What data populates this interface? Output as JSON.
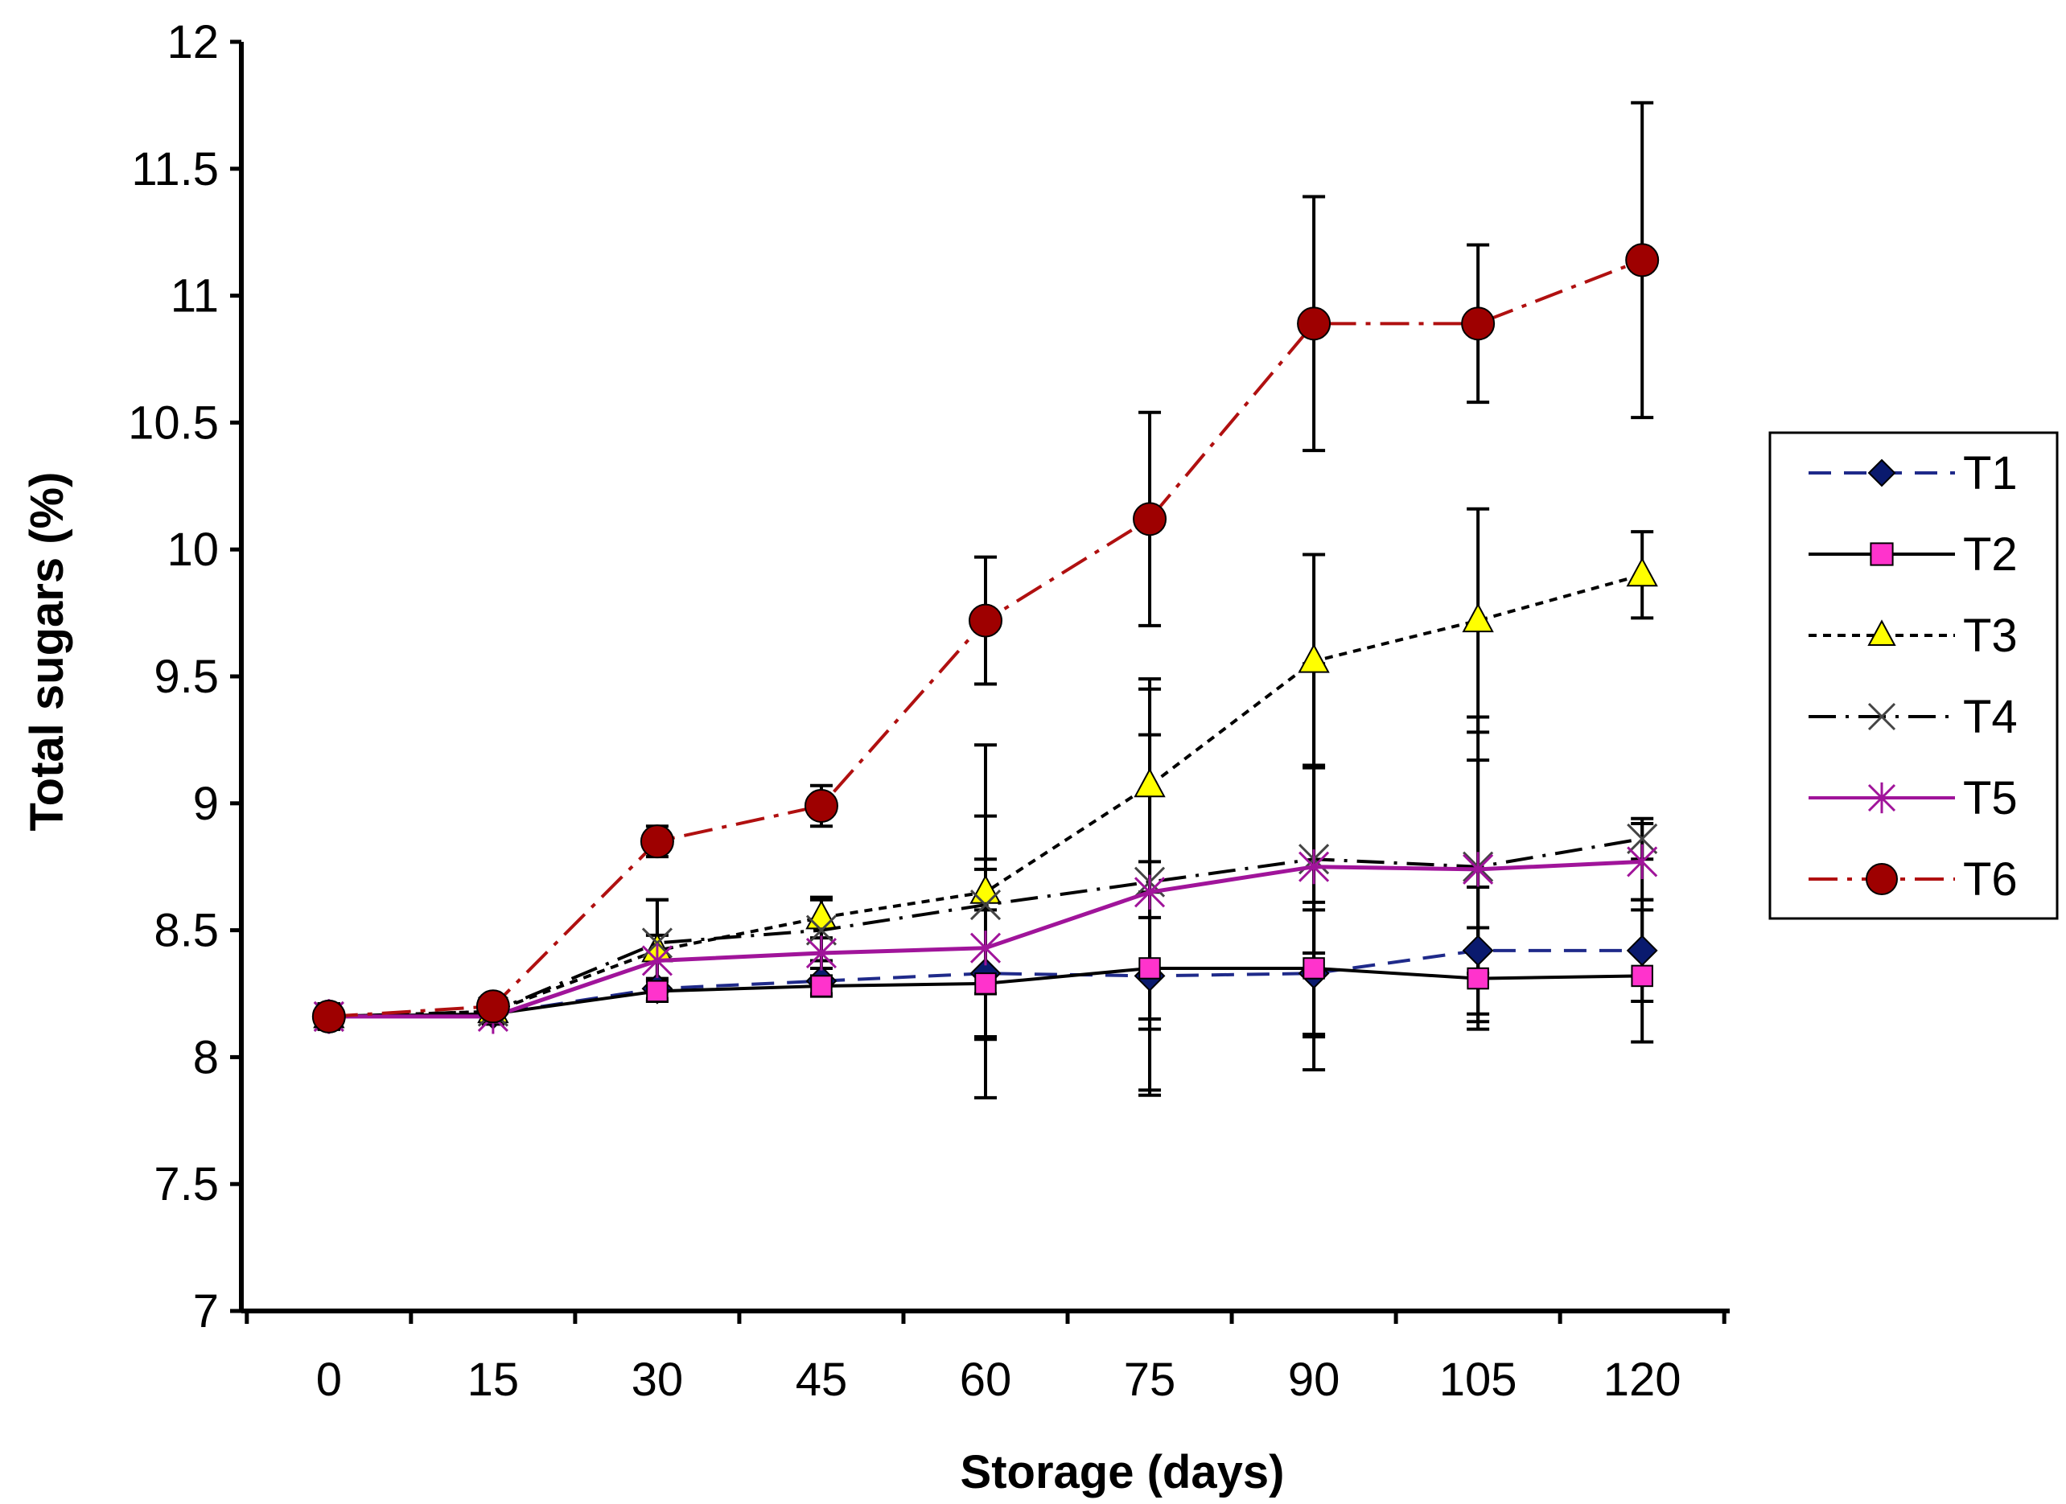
{
  "chart_data": {
    "type": "line",
    "title": "",
    "xlabel": "Storage (days)",
    "ylabel": "Total sugars (%)",
    "x": [
      0,
      15,
      30,
      45,
      60,
      75,
      90,
      105,
      120
    ],
    "xlim": [
      -8,
      128
    ],
    "ylim": [
      7,
      12
    ],
    "y_ticks": [
      "7",
      "7.5",
      "8",
      "8.5",
      "9",
      "9.5",
      "10",
      "10.5",
      "11",
      "11.5",
      "12"
    ],
    "x_ticks": [
      "0",
      "15",
      "30",
      "45",
      "60",
      "75",
      "90",
      "105",
      "120"
    ],
    "grid": false,
    "legend_position": "right",
    "series": [
      {
        "name": "T1",
        "values": [
          8.16,
          8.17,
          8.27,
          8.3,
          8.33,
          8.32,
          8.33,
          8.42,
          8.42
        ],
        "errors": [
          0.05,
          0.03,
          0.04,
          0.05,
          0.25,
          0.45,
          0.25,
          0.25,
          0.2
        ],
        "color": "#1f2a8a",
        "marker_fill": "#0a1a6e",
        "line_style": "dashed",
        "marker": "diamond"
      },
      {
        "name": "T2",
        "values": [
          8.16,
          8.17,
          8.26,
          8.28,
          8.29,
          8.35,
          8.35,
          8.31,
          8.32
        ],
        "errors": [
          0.05,
          0.03,
          0.04,
          0.04,
          0.45,
          0.2,
          0.26,
          0.2,
          0.26
        ],
        "color": "#000000",
        "marker_fill": "#ff33cc",
        "line_style": "solid",
        "marker": "square"
      },
      {
        "name": "T3",
        "values": [
          8.16,
          8.18,
          8.42,
          8.55,
          8.65,
          9.07,
          9.56,
          9.72,
          9.9
        ],
        "errors": [
          0.05,
          0.03,
          0.2,
          0.08,
          0.58,
          0.42,
          0.42,
          0.44,
          0.17
        ],
        "color": "#000000",
        "marker_fill": "#ffff00",
        "line_style": "dotted",
        "marker": "triangle"
      },
      {
        "name": "T4",
        "values": [
          8.16,
          8.18,
          8.45,
          8.5,
          8.6,
          8.69,
          8.78,
          8.75,
          8.86
        ],
        "errors": [
          0.05,
          0.03,
          0.17,
          0.12,
          0.35,
          0.58,
          0.37,
          0.42,
          0.08
        ],
        "color": "#000000",
        "marker_fill": "none",
        "line_style": "dashdot",
        "marker": "x"
      },
      {
        "name": "T5",
        "values": [
          8.16,
          8.16,
          8.38,
          8.41,
          8.43,
          8.65,
          8.75,
          8.74,
          8.77
        ],
        "errors": [
          0.05,
          0.03,
          0.1,
          0.1,
          0.35,
          0.8,
          0.8,
          0.6,
          0.15
        ],
        "color": "#a0149a",
        "marker_fill": "none",
        "line_style": "solid",
        "marker": "asterisk"
      },
      {
        "name": "T6",
        "values": [
          8.16,
          8.2,
          8.85,
          8.99,
          9.72,
          10.12,
          10.89,
          10.89,
          11.14
        ],
        "errors": [
          0.05,
          0.03,
          0.06,
          0.08,
          0.25,
          0.42,
          0.5,
          0.31,
          0.62
        ],
        "color": "#b01010",
        "marker_fill": "#9e0000",
        "line_style": "dashdotred",
        "marker": "circle"
      }
    ]
  }
}
